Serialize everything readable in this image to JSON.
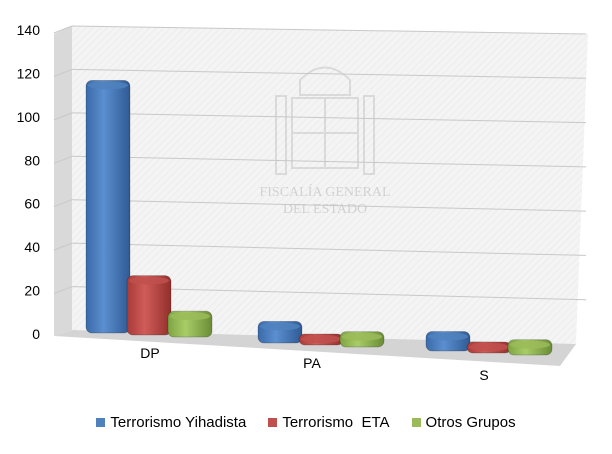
{
  "chart_data": {
    "type": "bar",
    "categories": [
      "DP",
      "PA",
      "S"
    ],
    "series": [
      {
        "name": "Terrorismo Yihadista",
        "values": [
          116,
          6,
          5
        ],
        "color": "#4f81bd"
      },
      {
        "name": "Terrorismo  ETA",
        "values": [
          24,
          0,
          0
        ],
        "color": "#c0504d"
      },
      {
        "name": "Otros Grupos",
        "values": [
          8,
          3,
          3
        ],
        "color": "#9bbb59"
      }
    ],
    "yticks": [
      "0",
      "20",
      "40",
      "60",
      "80",
      "100",
      "120",
      "140"
    ],
    "ylim": [
      0,
      140
    ],
    "grid": true,
    "legend_position": "bottom",
    "watermark": {
      "lines": [
        "FISCALÍA GENERAL",
        "DEL ESTADO"
      ],
      "icon": "coat-of-arms-icon"
    }
  }
}
